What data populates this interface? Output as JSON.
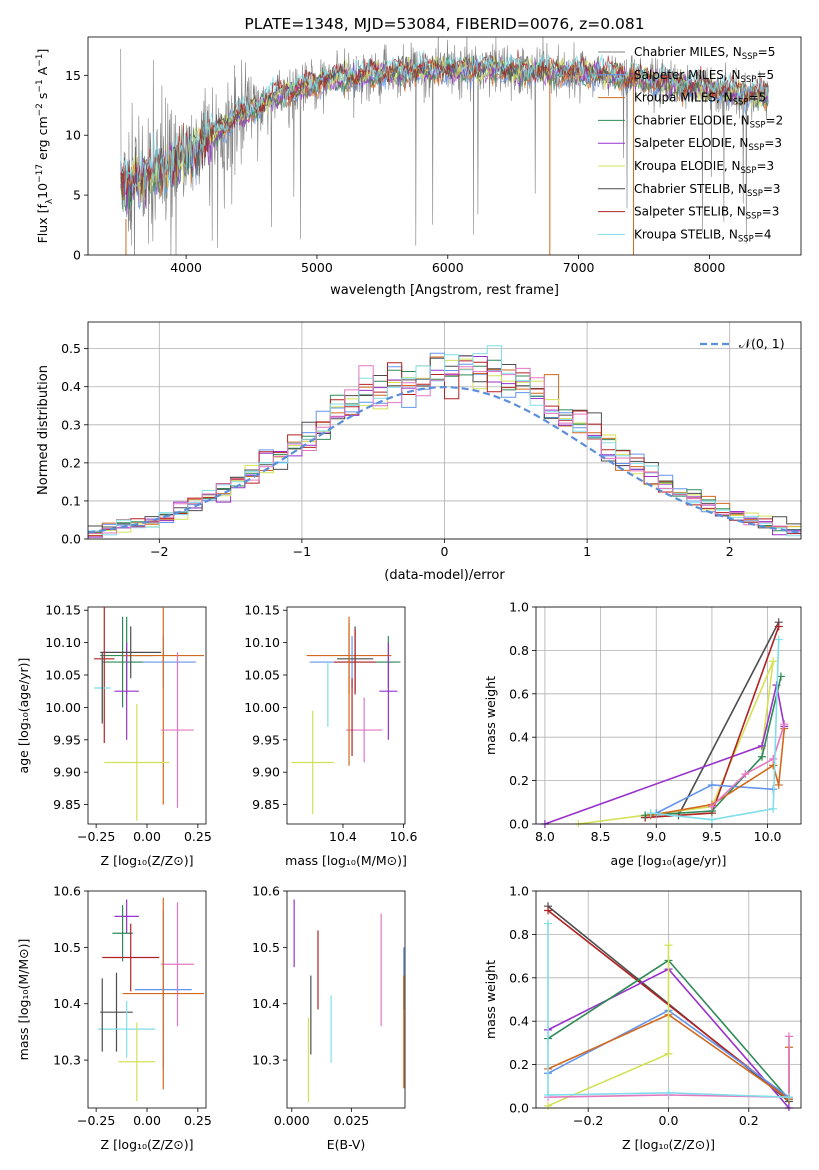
{
  "chart_data": [
    {
      "id": "spectrum",
      "type": "line",
      "title": "PLATE=1348, MJD=53084, FIBERID=0076, z=0.081",
      "xlabel": "wavelength [Angstrom, rest frame]",
      "ylabel_main": "Flux [f",
      "ylabel_sub": "λ",
      "ylabel_rest": "10",
      "ylabel_exp": "−17",
      "ylabel_unit": " erg cm",
      "ylabel_exp2": "−2",
      "ylabel_s": " s",
      "ylabel_exp3": "−1",
      "ylabel_A": " A",
      "ylabel_exp4": "−1",
      "ylabel_end": "]",
      "xlim": [
        3250,
        8700
      ],
      "ylim": [
        0,
        18.2
      ],
      "xticks": [
        "4000",
        "5000",
        "6000",
        "7000",
        "8000"
      ],
      "yticks": [
        "0",
        "5",
        "10",
        "15"
      ],
      "legend_position": "right",
      "legend": [
        {
          "label": "Chabrier MILES, N",
          "sub": "SSP",
          "tail": "=5",
          "color": "#7f7f7f"
        },
        {
          "label": "Salpeter MILES, N",
          "sub": "SSP",
          "tail": "=5",
          "color": "#6495ed"
        },
        {
          "label": "Kroupa MILES, N",
          "sub": "SSP",
          "tail": "=5",
          "color": "#d2691e"
        },
        {
          "label": "Chabrier ELODIE, N",
          "sub": "SSP",
          "tail": "=2",
          "color": "#2e8b57"
        },
        {
          "label": "Salpeter ELODIE, N",
          "sub": "SSP",
          "tail": "=3",
          "color": "#9932cc"
        },
        {
          "label": "Kroupa ELODIE, N",
          "sub": "SSP",
          "tail": "=3",
          "color": "#d4e157"
        },
        {
          "label": "Chabrier STELIB, N",
          "sub": "SSP",
          "tail": "=3",
          "color": "#4d4d4d"
        },
        {
          "label": "Salpeter STELIB, N",
          "sub": "SSP",
          "tail": "=3",
          "color": "#b22222"
        },
        {
          "label": "Kroupa STELIB, N",
          "sub": "SSP",
          "tail": "=4",
          "color": "#80deea"
        }
      ],
      "continuum": {
        "x": [
          3500,
          3700,
          3900,
          4100,
          4300,
          4500,
          4700,
          4900,
          5100,
          5300,
          5500,
          5700,
          5900,
          6100,
          6300,
          6500,
          6700,
          6900,
          7100,
          7300,
          7500,
          7700,
          7900,
          8100,
          8300,
          8450
        ],
        "y": [
          6.0,
          6.5,
          7.5,
          9.0,
          10.8,
          12.2,
          13.3,
          14.0,
          14.6,
          14.9,
          15.1,
          15.3,
          15.4,
          15.5,
          15.5,
          15.4,
          15.3,
          15.2,
          15.1,
          14.9,
          14.6,
          14.3,
          14.0,
          13.7,
          13.4,
          13.2
        ]
      }
    },
    {
      "id": "residuals",
      "type": "histogram",
      "xlabel": "(data-model)/error",
      "ylabel": "Normed distribution",
      "xlim": [
        -2.5,
        2.5
      ],
      "ylim": [
        0,
        0.57
      ],
      "xticks": [
        "−2",
        "−1",
        "0",
        "1",
        "2"
      ],
      "yticks": [
        "0.0",
        "0.1",
        "0.2",
        "0.3",
        "0.4",
        "0.5"
      ],
      "grid": true,
      "legend_position": "top-right",
      "legend": [
        {
          "label": "𝒩(0, 1)",
          "color": "#5b8fd9",
          "style": "dashed"
        }
      ],
      "bin_width": 0.1
    },
    {
      "id": "age-vs-Z",
      "type": "scatter",
      "xlabel": "Z [log₁₀(Z/Z⊙)]",
      "ylabel": "age  [log₁₀(age/yr)]",
      "xlim": [
        -0.29,
        0.29
      ],
      "ylim": [
        9.82,
        10.155
      ],
      "xticks": [
        -0.25,
        0.0,
        0.25
      ],
      "xtick_labels": [
        "−0.25",
        "0.00",
        "0.25"
      ],
      "yticks": [
        9.85,
        9.9,
        9.95,
        10.0,
        10.05,
        10.1,
        10.15
      ],
      "ytick_labels": [
        "9.85",
        "9.90",
        "9.95",
        "10.00",
        "10.05",
        "10.10",
        "10.15"
      ],
      "points": [
        {
          "x": -0.1,
          "y": 10.08,
          "xerr": 0.13,
          "yerr": 0.06,
          "color": "#2e8b57"
        },
        {
          "x": 0.08,
          "y": 10.07,
          "xerr": 0.16,
          "yerr": 0.04,
          "color": "#6495ed"
        },
        {
          "x": 0.08,
          "y": 10.08,
          "xerr": 0.2,
          "yerr": 0.23,
          "color": "#d2691e"
        },
        {
          "x": -0.12,
          "y": 10.07,
          "xerr": 0.1,
          "yerr": 0.07,
          "color": "#2e8b57"
        },
        {
          "x": -0.1,
          "y": 10.025,
          "xerr": 0.06,
          "yerr": 0.075,
          "color": "#9932cc"
        },
        {
          "x": -0.05,
          "y": 9.915,
          "xerr": 0.16,
          "yerr": 0.09,
          "color": "#d4e157"
        },
        {
          "x": -0.08,
          "y": 10.085,
          "xerr": 0.15,
          "yerr": 0.04,
          "color": "#4d4d4d"
        },
        {
          "x": -0.21,
          "y": 10.075,
          "xerr": 0.05,
          "yerr": 0.13,
          "color": "#b22222"
        },
        {
          "x": 0.15,
          "y": 9.965,
          "xerr": 0.08,
          "yerr": 0.12,
          "color": "#e377c2"
        },
        {
          "x": -0.22,
          "y": 10.03,
          "xerr": 0.04,
          "yerr": 0.05,
          "color": "#80deea"
        },
        {
          "x": -0.22,
          "y": 10.03,
          "xerr": 0.0,
          "yerr": 0.055,
          "color": "#4d4d4d"
        }
      ]
    },
    {
      "id": "age-vs-mass",
      "type": "scatter",
      "xlabel": "mass [log₁₀(M/M⊙)]",
      "ylabel": "",
      "xlim": [
        10.215,
        10.605
      ],
      "ylim": [
        9.82,
        10.155
      ],
      "xticks": [
        10.4,
        10.6
      ],
      "xtick_labels": [
        "10.4",
        "10.6"
      ],
      "yticks": [
        9.85,
        9.9,
        9.95,
        10.0,
        10.05,
        10.1,
        10.15
      ],
      "ytick_labels": [
        "9.85",
        "9.90",
        "9.95",
        "10.00",
        "10.05",
        "10.10",
        "10.15"
      ],
      "points": [
        {
          "x": 10.42,
          "y": 10.08,
          "xerr": 0.14,
          "yerr": 0.06,
          "color": "#d2691e"
        },
        {
          "x": 10.43,
          "y": 10.07,
          "xerr": 0.14,
          "yerr": 0.04,
          "color": "#6495ed"
        },
        {
          "x": 10.55,
          "y": 10.07,
          "xerr": 0.04,
          "yerr": 0.04,
          "color": "#2e8b57"
        },
        {
          "x": 10.44,
          "y": 10.075,
          "xerr": 0.06,
          "yerr": 0.05,
          "color": "#4d4d4d"
        },
        {
          "x": 10.55,
          "y": 10.025,
          "xerr": 0.03,
          "yerr": 0.075,
          "color": "#9932cc"
        },
        {
          "x": 10.44,
          "y": 10.07,
          "xerr": 0.07,
          "yerr": 0.05,
          "color": "#b22222"
        },
        {
          "x": 10.47,
          "y": 9.965,
          "xerr": 0.06,
          "yerr": 0.05,
          "color": "#e377c2"
        },
        {
          "x": 10.3,
          "y": 9.915,
          "xerr": 0.07,
          "yerr": 0.08,
          "color": "#d4e157"
        },
        {
          "x": 10.35,
          "y": 10.02,
          "xerr": 0.0,
          "yerr": 0.05,
          "color": "#80deea"
        },
        {
          "x": 10.42,
          "y": 10.02,
          "xerr": 0.0,
          "yerr": 0.11,
          "color": "#d2691e"
        },
        {
          "x": 10.43,
          "y": 9.985,
          "xerr": 0.0,
          "yerr": 0.06,
          "color": "#b22222"
        }
      ]
    },
    {
      "id": "weight-vs-age",
      "type": "line",
      "xlabel": "age  [log₁₀(age/yr)]",
      "ylabel": "mass weight",
      "xlim": [
        7.92,
        10.3
      ],
      "ylim": [
        0,
        1.0
      ],
      "xticks": [
        8.0,
        8.5,
        9.0,
        9.5,
        10.0
      ],
      "xtick_labels": [
        "8.0",
        "8.5",
        "9.0",
        "9.5",
        "10.0"
      ],
      "yticks": [
        0.0,
        0.2,
        0.4,
        0.6,
        0.8,
        1.0
      ],
      "ytick_labels": [
        "0.0",
        "0.2",
        "0.4",
        "0.6",
        "0.8",
        "1.0"
      ],
      "grid": true,
      "series": [
        {
          "color": "#4d4d4d",
          "x": [
            8.9,
            9.2,
            10.1
          ],
          "y": [
            0.03,
            0.04,
            0.93
          ]
        },
        {
          "color": "#d4e157",
          "x": [
            8.3,
            9.5,
            10.05,
            9.95
          ],
          "y": [
            0.0,
            0.08,
            0.75,
            0.35
          ]
        },
        {
          "color": "#9932cc",
          "x": [
            8.0,
            9.95,
            10.08,
            10.15
          ],
          "y": [
            0.0,
            0.36,
            0.64,
            0.45
          ]
        },
        {
          "color": "#b22222",
          "x": [
            8.9,
            9.5,
            10.1
          ],
          "y": [
            0.03,
            0.05,
            0.91
          ]
        },
        {
          "color": "#2e8b57",
          "x": [
            8.9,
            9.5,
            9.95,
            10.12
          ],
          "y": [
            0.04,
            0.06,
            0.31,
            0.68
          ]
        },
        {
          "color": "#6495ed",
          "x": [
            9.0,
            9.5,
            10.05
          ],
          "y": [
            0.05,
            0.18,
            0.16
          ]
        },
        {
          "color": "#d2691e",
          "x": [
            8.95,
            9.5,
            10.05,
            10.1,
            10.15
          ],
          "y": [
            0.04,
            0.09,
            0.27,
            0.18,
            0.44
          ]
        },
        {
          "color": "#e377c2",
          "x": [
            9.5,
            9.8,
            10.05,
            10.15
          ],
          "y": [
            0.08,
            0.23,
            0.3,
            0.46
          ]
        },
        {
          "color": "#80deea",
          "x": [
            8.95,
            9.5,
            10.05,
            10.1
          ],
          "y": [
            0.05,
            0.02,
            0.07,
            0.85
          ]
        }
      ]
    },
    {
      "id": "mass-vs-Z",
      "type": "scatter",
      "xlabel": "Z [log₁₀(Z/Z⊙)]",
      "ylabel": "mass [log₁₀(M/M⊙)]",
      "xlim": [
        -0.29,
        0.29
      ],
      "ylim": [
        10.215,
        10.6
      ],
      "xticks": [
        -0.25,
        0.0,
        0.25
      ],
      "xtick_labels": [
        "−0.25",
        "0.00",
        "0.25"
      ],
      "yticks": [
        10.3,
        10.4,
        10.5,
        10.6
      ],
      "ytick_labels": [
        "10.3",
        "10.4",
        "10.5",
        "10.6"
      ],
      "points": [
        {
          "x": -0.1,
          "y": 10.555,
          "xerr": 0.06,
          "yerr": 0.03,
          "color": "#9932cc"
        },
        {
          "x": -0.12,
          "y": 10.525,
          "xerr": 0.05,
          "yerr": 0.05,
          "color": "#2e8b57"
        },
        {
          "x": -0.08,
          "y": 10.482,
          "xerr": 0.14,
          "yerr": 0.06,
          "color": "#b22222"
        },
        {
          "x": 0.15,
          "y": 10.47,
          "xerr": 0.08,
          "yerr": 0.11,
          "color": "#e377c2"
        },
        {
          "x": 0.08,
          "y": 10.425,
          "xerr": 0.14,
          "yerr": 0.14,
          "color": "#6495ed"
        },
        {
          "x": 0.08,
          "y": 10.418,
          "xerr": 0.2,
          "yerr": 0.17,
          "color": "#d2691e"
        },
        {
          "x": -0.15,
          "y": 10.385,
          "xerr": 0.08,
          "yerr": 0.07,
          "color": "#4d4d4d"
        },
        {
          "x": -0.1,
          "y": 10.355,
          "xerr": 0.14,
          "yerr": 0.05,
          "color": "#80deea"
        },
        {
          "x": -0.05,
          "y": 10.297,
          "xerr": 0.09,
          "yerr": 0.07,
          "color": "#d4e157"
        },
        {
          "x": -0.22,
          "y": 10.38,
          "xerr": 0.0,
          "yerr": 0.065,
          "color": "#4d4d4d"
        }
      ]
    },
    {
      "id": "mass-vs-ebv",
      "type": "scatter",
      "xlabel": "E(B-V)",
      "ylabel": "",
      "xlim": [
        -0.002,
        0.0475
      ],
      "ylim": [
        10.215,
        10.6
      ],
      "xticks": [
        0.0,
        0.025
      ],
      "xtick_labels": [
        "0.000",
        "0.025"
      ],
      "yticks": [
        10.3,
        10.4,
        10.5,
        10.6
      ],
      "ytick_labels": [
        "10.3",
        "10.4",
        "10.5",
        "10.6"
      ],
      "points": [
        {
          "x": 0.001,
          "y": 10.525,
          "xerr": 0,
          "yerr": 0.06,
          "color": "#9932cc"
        },
        {
          "x": 0.011,
          "y": 10.46,
          "xerr": 0,
          "yerr": 0.07,
          "color": "#b22222"
        },
        {
          "x": 0.008,
          "y": 10.38,
          "xerr": 0,
          "yerr": 0.07,
          "color": "#4d4d4d"
        },
        {
          "x": 0.007,
          "y": 10.3,
          "xerr": 0,
          "yerr": 0.075,
          "color": "#d4e157"
        },
        {
          "x": 0.0165,
          "y": 10.355,
          "xerr": 0,
          "yerr": 0.06,
          "color": "#80deea"
        },
        {
          "x": 0.0375,
          "y": 10.46,
          "xerr": 0,
          "yerr": 0.1,
          "color": "#e377c2"
        },
        {
          "x": 0.047,
          "y": 10.445,
          "xerr": 0,
          "yerr": 0.055,
          "color": "#6495ed"
        },
        {
          "x": 0.047,
          "y": 10.35,
          "xerr": 0,
          "yerr": 0.1,
          "color": "#d2691e"
        }
      ]
    },
    {
      "id": "weight-vs-Z",
      "type": "line",
      "xlabel": "Z [log₁₀(Z/Z⊙)]",
      "ylabel": "mass weight",
      "xlim": [
        -0.33,
        0.33
      ],
      "ylim": [
        0,
        1.0
      ],
      "xticks": [
        -0.2,
        0.0,
        0.2
      ],
      "xtick_labels": [
        "−0.2",
        "0.0",
        "0.2"
      ],
      "yticks": [
        0.0,
        0.2,
        0.4,
        0.6,
        0.8,
        1.0
      ],
      "ytick_labels": [
        "0.0",
        "0.2",
        "0.4",
        "0.6",
        "0.8",
        "1.0"
      ],
      "grid": true,
      "series": [
        {
          "color": "#4d4d4d",
          "x": [
            -0.3,
            0.3
          ],
          "y": [
            0.93,
            0.03
          ]
        },
        {
          "color": "#b22222",
          "x": [
            -0.3,
            0.3
          ],
          "y": [
            0.91,
            0.04
          ]
        },
        {
          "color": "#9932cc",
          "x": [
            -0.3,
            0.0,
            0.3
          ],
          "y": [
            0.36,
            0.64,
            0.0
          ]
        },
        {
          "color": "#2e8b57",
          "x": [
            -0.3,
            0.0,
            0.3
          ],
          "y": [
            0.32,
            0.68,
            0.04
          ]
        },
        {
          "color": "#6495ed",
          "x": [
            -0.3,
            0.0,
            0.3
          ],
          "y": [
            0.16,
            0.45,
            0.05
          ]
        },
        {
          "color": "#d2691e",
          "x": [
            -0.3,
            0.0,
            0.3,
            0.3
          ],
          "y": [
            0.18,
            0.43,
            0.04,
            0.28
          ]
        },
        {
          "color": "#d4e157",
          "x": [
            -0.3,
            0.0,
            0.0
          ],
          "y": [
            0.01,
            0.25,
            0.75
          ]
        },
        {
          "color": "#e377c2",
          "x": [
            -0.3,
            0.0,
            0.3,
            0.3
          ],
          "y": [
            0.05,
            0.06,
            0.05,
            0.33
          ]
        },
        {
          "color": "#80deea",
          "x": [
            -0.3,
            -0.3,
            0.0,
            0.3
          ],
          "y": [
            0.85,
            0.06,
            0.07,
            0.05
          ]
        }
      ]
    }
  ]
}
